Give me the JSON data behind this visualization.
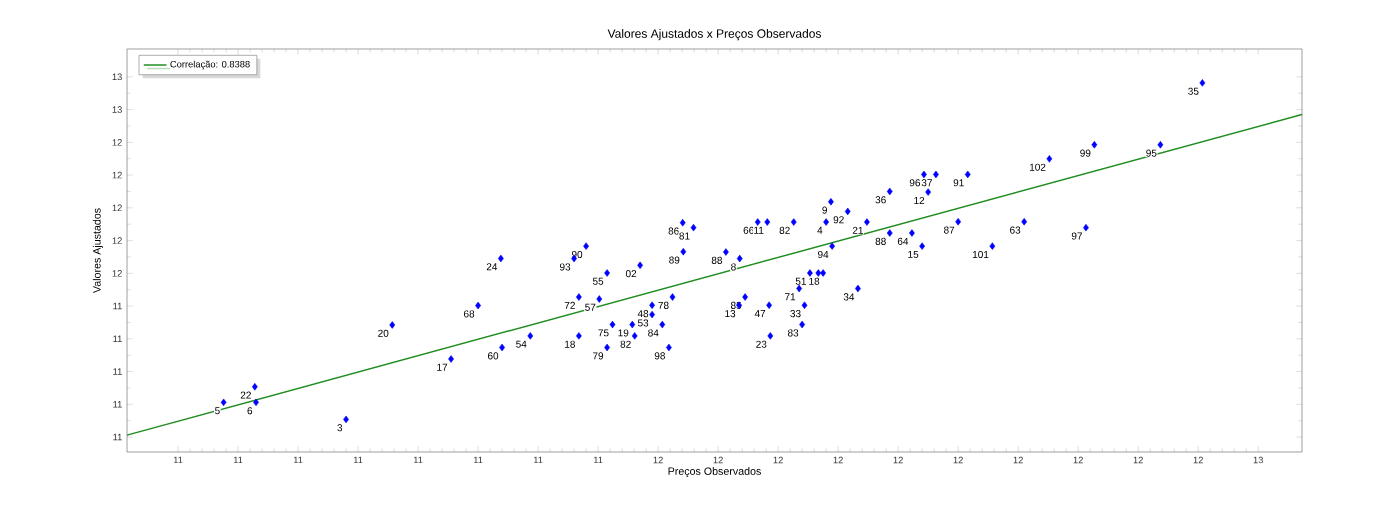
{
  "chart_data": {
    "type": "scatter",
    "title": "Valores Ajustados x Preços Observados",
    "xlabel": "Preços Observados",
    "ylabel": "Valores Ajustados",
    "xlim": [
      10.615,
      12.573
    ],
    "ylim": [
      10.509,
      12.97
    ],
    "xticks": [
      {
        "value": 10.7,
        "label": "11"
      },
      {
        "value": 10.8,
        "label": "11"
      },
      {
        "value": 10.9,
        "label": "11"
      },
      {
        "value": 11.0,
        "label": "11"
      },
      {
        "value": 11.1,
        "label": "11"
      },
      {
        "value": 11.2,
        "label": "11"
      },
      {
        "value": 11.3,
        "label": "11"
      },
      {
        "value": 11.4,
        "label": "11"
      },
      {
        "value": 11.5,
        "label": "12"
      },
      {
        "value": 11.6,
        "label": "12"
      },
      {
        "value": 11.7,
        "label": "12"
      },
      {
        "value": 11.8,
        "label": "12"
      },
      {
        "value": 11.9,
        "label": "12"
      },
      {
        "value": 12.0,
        "label": "12"
      },
      {
        "value": 12.1,
        "label": "12"
      },
      {
        "value": 12.2,
        "label": "12"
      },
      {
        "value": 12.3,
        "label": "12"
      },
      {
        "value": 12.4,
        "label": "12"
      },
      {
        "value": 12.5,
        "label": "13"
      }
    ],
    "yticks": [
      {
        "value": 10.6,
        "label": "11"
      },
      {
        "value": 10.8,
        "label": "11"
      },
      {
        "value": 11.0,
        "label": "11"
      },
      {
        "value": 11.2,
        "label": "11"
      },
      {
        "value": 11.4,
        "label": "11"
      },
      {
        "value": 11.6,
        "label": "12"
      },
      {
        "value": 11.8,
        "label": "12"
      },
      {
        "value": 12.0,
        "label": "12"
      },
      {
        "value": 12.2,
        "label": "12"
      },
      {
        "value": 12.4,
        "label": "12"
      },
      {
        "value": 12.6,
        "label": "13"
      },
      {
        "value": 12.8,
        "label": "13"
      }
    ],
    "legend": "top left",
    "grid": false,
    "series": [
      {
        "color": "#0000ff",
        "marker": "diamond",
        "x": [
          10.776,
          10.828,
          10.83,
          10.98,
          11.057,
          11.155,
          11.2,
          11.238,
          11.24,
          11.287,
          11.38,
          11.36,
          11.415,
          11.368,
          11.402,
          11.47,
          11.542,
          11.613,
          11.636,
          11.79,
          11.753,
          11.767,
          11.775,
          11.735,
          11.833,
          11.744,
          11.74,
          11.685,
          11.687,
          11.645,
          11.635,
          11.524,
          11.49,
          11.49,
          11.507,
          11.457,
          11.424,
          11.461,
          11.368,
          11.415,
          11.518,
          11.541,
          11.559,
          11.666,
          11.682,
          11.726,
          11.78,
          11.788,
          11.816,
          11.848,
          11.886,
          11.886,
          11.923,
          11.94,
          11.95,
          11.943,
          11.963,
          12.016,
          12.0,
          12.057,
          12.11,
          12.152,
          12.227,
          12.213,
          12.337,
          12.407
        ],
        "values": [
          10.812,
          10.907,
          10.812,
          10.708,
          11.285,
          11.077,
          11.403,
          11.691,
          11.147,
          11.218,
          11.766,
          11.69,
          11.602,
          11.455,
          11.443,
          11.649,
          11.732,
          11.73,
          11.69,
          11.766,
          11.602,
          11.602,
          11.602,
          11.507,
          11.507,
          11.405,
          11.287,
          11.405,
          11.218,
          11.455,
          11.405,
          11.455,
          11.405,
          11.348,
          11.287,
          11.287,
          11.287,
          11.218,
          11.218,
          11.147,
          11.147,
          11.909,
          11.879,
          11.913,
          11.913,
          11.913,
          11.913,
          12.037,
          11.978,
          11.913,
          12.1,
          11.846,
          11.846,
          11.766,
          12.096,
          12.204,
          12.204,
          12.204,
          11.915,
          11.766,
          11.915,
          12.299,
          12.385,
          11.879,
          12.385,
          12.763
        ]
      },
      {
        "type": "line",
        "name": "Correlação: 0.8388",
        "color": "#1e8c1e",
        "marker": "none",
        "x": [
          10.615,
          12.573
        ],
        "values": [
          10.612,
          12.57
        ]
      }
    ],
    "annotations": [
      {
        "text": "5",
        "x": 10.776,
        "y": 10.812
      },
      {
        "text": "22",
        "x": 10.828,
        "y": 10.907
      },
      {
        "text": "6",
        "x": 10.83,
        "y": 10.812
      },
      {
        "text": "3",
        "x": 10.98,
        "y": 10.708
      },
      {
        "text": "20",
        "x": 11.057,
        "y": 11.285
      },
      {
        "text": "17",
        "x": 11.155,
        "y": 11.077
      },
      {
        "text": "68",
        "x": 11.2,
        "y": 11.403
      },
      {
        "text": "24",
        "x": 11.238,
        "y": 11.691
      },
      {
        "text": "60",
        "x": 11.24,
        "y": 11.147
      },
      {
        "text": "54",
        "x": 11.287,
        "y": 11.218
      },
      {
        "text": "90",
        "x": 11.38,
        "y": 11.766
      },
      {
        "text": "93",
        "x": 11.36,
        "y": 11.69
      },
      {
        "text": "55",
        "x": 11.415,
        "y": 11.602
      },
      {
        "text": "72",
        "x": 11.368,
        "y": 11.455
      },
      {
        "text": "57",
        "x": 11.402,
        "y": 11.443
      },
      {
        "text": "02",
        "x": 11.47,
        "y": 11.649
      },
      {
        "text": "89",
        "x": 11.542,
        "y": 11.732
      },
      {
        "text": "88",
        "x": 11.613,
        "y": 11.73
      },
      {
        "text": "8",
        "x": 11.636,
        "y": 11.69
      },
      {
        "text": "94",
        "x": 11.79,
        "y": 11.766
      },
      {
        "text": "51",
        "x": 11.753,
        "y": 11.602
      },
      {
        "text": "18",
        "x": 11.775,
        "y": 11.602
      },
      {
        "text": "71",
        "x": 11.735,
        "y": 11.507
      },
      {
        "text": "34",
        "x": 11.833,
        "y": 11.507
      },
      {
        "text": "33",
        "x": 11.744,
        "y": 11.405
      },
      {
        "text": "83",
        "x": 11.74,
        "y": 11.287
      },
      {
        "text": "47",
        "x": 11.685,
        "y": 11.405
      },
      {
        "text": "23",
        "x": 11.687,
        "y": 11.218
      },
      {
        "text": "85",
        "x": 11.645,
        "y": 11.455
      },
      {
        "text": "13",
        "x": 11.635,
        "y": 11.405
      },
      {
        "text": "78",
        "x": 11.524,
        "y": 11.455
      },
      {
        "text": "48",
        "x": 11.49,
        "y": 11.405
      },
      {
        "text": "53",
        "x": 11.49,
        "y": 11.348
      },
      {
        "text": "84",
        "x": 11.507,
        "y": 11.287
      },
      {
        "text": "19",
        "x": 11.457,
        "y": 11.287
      },
      {
        "text": "75",
        "x": 11.424,
        "y": 11.287
      },
      {
        "text": "82",
        "x": 11.461,
        "y": 11.218
      },
      {
        "text": "18",
        "x": 11.368,
        "y": 11.218
      },
      {
        "text": "79",
        "x": 11.415,
        "y": 11.147
      },
      {
        "text": "98",
        "x": 11.518,
        "y": 11.147
      },
      {
        "text": "86",
        "x": 11.541,
        "y": 11.909
      },
      {
        "text": "81",
        "x": 11.559,
        "y": 11.879
      },
      {
        "text": "66",
        "x": 11.666,
        "y": 11.913
      },
      {
        "text": "11",
        "x": 11.682,
        "y": 11.913
      },
      {
        "text": "82",
        "x": 11.726,
        "y": 11.913
      },
      {
        "text": "4",
        "x": 11.78,
        "y": 11.913
      },
      {
        "text": "9",
        "x": 11.788,
        "y": 12.037
      },
      {
        "text": "92",
        "x": 11.816,
        "y": 11.978
      },
      {
        "text": "21",
        "x": 11.848,
        "y": 11.913
      },
      {
        "text": "36",
        "x": 11.886,
        "y": 12.1
      },
      {
        "text": "88",
        "x": 11.886,
        "y": 11.846
      },
      {
        "text": "64",
        "x": 11.923,
        "y": 11.846
      },
      {
        "text": "15",
        "x": 11.94,
        "y": 11.766
      },
      {
        "text": "12",
        "x": 11.95,
        "y": 12.096
      },
      {
        "text": "96",
        "x": 11.943,
        "y": 12.204
      },
      {
        "text": "37",
        "x": 11.963,
        "y": 12.204
      },
      {
        "text": "91",
        "x": 12.016,
        "y": 12.204
      },
      {
        "text": "87",
        "x": 12.0,
        "y": 11.915
      },
      {
        "text": "101",
        "x": 12.057,
        "y": 11.766
      },
      {
        "text": "63",
        "x": 12.11,
        "y": 11.915
      },
      {
        "text": "102",
        "x": 12.152,
        "y": 12.299
      },
      {
        "text": "99",
        "x": 12.227,
        "y": 12.385
      },
      {
        "text": "97",
        "x": 12.213,
        "y": 11.879
      },
      {
        "text": "95",
        "x": 12.337,
        "y": 12.385
      },
      {
        "text": "35",
        "x": 12.407,
        "y": 12.763
      }
    ]
  }
}
